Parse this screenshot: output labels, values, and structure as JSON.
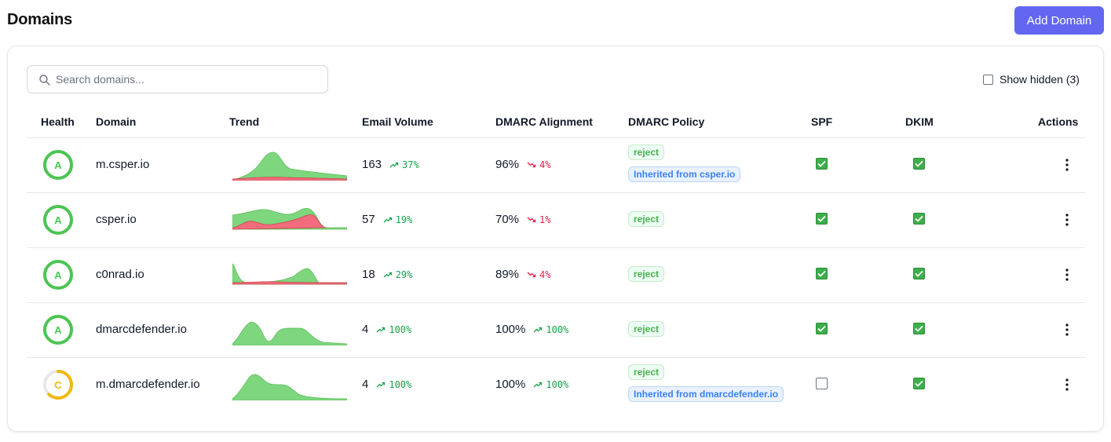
{
  "header": {
    "title": "Domains",
    "add_button": "Add Domain"
  },
  "search": {
    "placeholder": "Search domains..."
  },
  "show_hidden": {
    "label": "Show hidden (3)",
    "checked": false
  },
  "columns": [
    "Health",
    "Domain",
    "Trend",
    "Email Volume",
    "DMARC Alignment",
    "DMARC Policy",
    "SPF",
    "DKIM",
    "Actions"
  ],
  "colors": {
    "accent": "#6366f1",
    "health_a": "#4cc553",
    "health_c": "#f2b80f",
    "trend_green": "#7ed67e",
    "trend_red": "#f26c7d",
    "up": "#16a34a",
    "down": "#e11d48"
  },
  "rows": [
    {
      "grade": "A",
      "grade_level": 1.0,
      "domain": "m.csper.io",
      "volume": "163",
      "volume_delta": "37%",
      "volume_dir": "up",
      "alignment": "96%",
      "alignment_delta": "4%",
      "alignment_dir": "down",
      "policy": "reject",
      "inherited": "Inherited from csper.io",
      "spf": true,
      "dkim": true
    },
    {
      "grade": "A",
      "grade_level": 1.0,
      "domain": "csper.io",
      "volume": "57",
      "volume_delta": "19%",
      "volume_dir": "up",
      "alignment": "70%",
      "alignment_delta": "1%",
      "alignment_dir": "down",
      "policy": "reject",
      "inherited": "",
      "spf": true,
      "dkim": true
    },
    {
      "grade": "A",
      "grade_level": 1.0,
      "domain": "c0nrad.io",
      "volume": "18",
      "volume_delta": "29%",
      "volume_dir": "up",
      "alignment": "89%",
      "alignment_delta": "4%",
      "alignment_dir": "down",
      "policy": "reject",
      "inherited": "",
      "spf": true,
      "dkim": true
    },
    {
      "grade": "A",
      "grade_level": 1.0,
      "domain": "dmarcdefender.io",
      "volume": "4",
      "volume_delta": "100%",
      "volume_dir": "up",
      "alignment": "100%",
      "alignment_delta": "100%",
      "alignment_dir": "up",
      "policy": "reject",
      "inherited": "",
      "spf": true,
      "dkim": true
    },
    {
      "grade": "C",
      "grade_level": 0.62,
      "domain": "m.dmarcdefender.io",
      "volume": "4",
      "volume_delta": "100%",
      "volume_dir": "up",
      "alignment": "100%",
      "alignment_delta": "100%",
      "alignment_dir": "up",
      "policy": "reject",
      "inherited": "Inherited from dmarcdefender.io",
      "spf": false,
      "dkim": true
    }
  ]
}
